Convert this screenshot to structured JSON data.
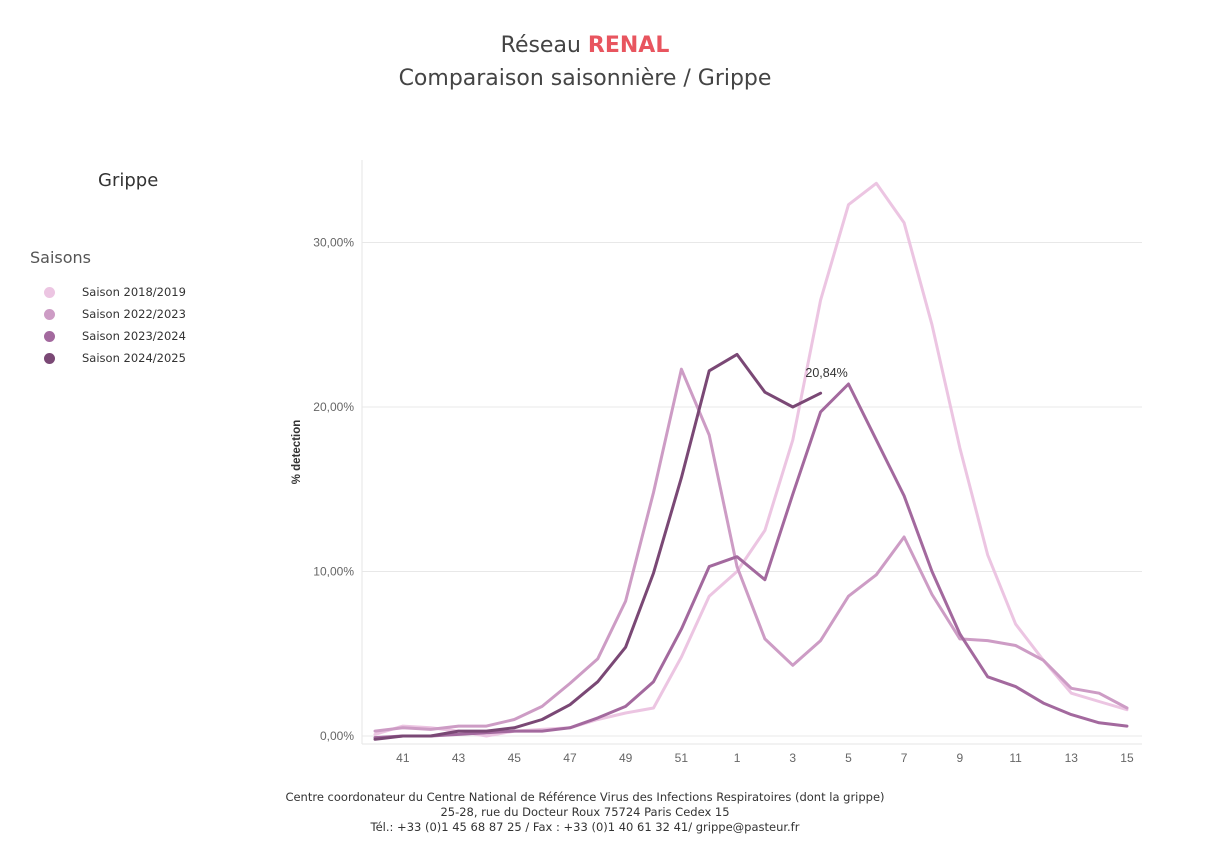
{
  "header": {
    "title_prefix": "Réseau",
    "title_accent": "RENAL",
    "subtitle": "Comparaison saisonnière / Grippe"
  },
  "panel": {
    "title": "Grippe"
  },
  "legend": {
    "title": "Saisons",
    "items": [
      {
        "label": "Saison 2018/2019",
        "color": "#ecc5e2"
      },
      {
        "label": "Saison 2022/2023",
        "color": "#cd9cc5"
      },
      {
        "label": "Saison 2023/2024",
        "color": "#a3699e"
      },
      {
        "label": "Saison 2024/2025",
        "color": "#7a4875"
      }
    ]
  },
  "chart_data": {
    "type": "line",
    "ylabel": "% detection",
    "xlabel": "",
    "ylim": [
      -0.5,
      35
    ],
    "y_ticks": [
      0,
      10,
      20,
      30
    ],
    "y_tick_labels": [
      "0,00%",
      "10,00%",
      "20,00%",
      "30,00%"
    ],
    "categories": [
      "40",
      "41",
      "42",
      "43",
      "44",
      "45",
      "46",
      "47",
      "48",
      "49",
      "50",
      "51",
      "52",
      "1",
      "2",
      "3",
      "4",
      "5",
      "6",
      "7",
      "8",
      "9",
      "10",
      "11",
      "12",
      "13",
      "14",
      "15"
    ],
    "x_tick_labels": [
      "41",
      "43",
      "45",
      "47",
      "49",
      "51",
      "1",
      "3",
      "5",
      "7",
      "9",
      "11",
      "13",
      "15"
    ],
    "series": [
      {
        "name": "Saison 2018/2019",
        "color": "#ecc5e2",
        "values": [
          0.1,
          0.6,
          0.5,
          0.3,
          0.0,
          0.3,
          0.4,
          0.5,
          1.0,
          1.4,
          1.7,
          4.8,
          8.5,
          10.0,
          12.5,
          18.0,
          26.5,
          32.3,
          33.6,
          31.2,
          25.0,
          17.5,
          11.0,
          6.8,
          4.6,
          2.6,
          2.1,
          1.6
        ]
      },
      {
        "name": "Saison 2022/2023",
        "color": "#cd9cc5",
        "values": [
          0.3,
          0.5,
          0.4,
          0.6,
          0.6,
          1.0,
          1.8,
          3.2,
          4.7,
          8.2,
          14.8,
          22.3,
          18.3,
          10.3,
          5.9,
          4.3,
          5.8,
          8.5,
          9.8,
          12.1,
          8.6,
          5.9,
          5.8,
          5.5,
          4.6,
          2.9,
          2.6,
          1.7
        ]
      },
      {
        "name": "Saison 2023/2024",
        "color": "#a3699e",
        "values": [
          -0.1,
          0.0,
          0.0,
          0.1,
          0.2,
          0.3,
          0.3,
          0.5,
          1.1,
          1.8,
          3.3,
          6.5,
          10.3,
          10.9,
          9.5,
          14.7,
          19.7,
          21.4,
          18.0,
          14.6,
          10.0,
          6.2,
          3.6,
          3.0,
          2.0,
          1.3,
          0.8,
          0.6
        ]
      },
      {
        "name": "Saison 2024/2025",
        "color": "#7a4875",
        "values": [
          -0.2,
          0.0,
          0.0,
          0.3,
          0.3,
          0.5,
          1.0,
          1.9,
          3.3,
          5.4,
          9.9,
          15.7,
          22.2,
          23.2,
          20.9,
          20.0,
          20.84,
          null,
          null,
          null,
          null,
          null,
          null,
          null,
          null,
          null,
          null,
          null
        ]
      }
    ],
    "annotation": {
      "text": "20,84%",
      "series": "Saison 2024/2025",
      "category": "4"
    }
  },
  "footer": {
    "line1": "Centre coordonateur du Centre National de Référence Virus des Infections Respiratoires (dont la grippe)",
    "line2": "25-28, rue du Docteur Roux 75724 Paris Cedex 15",
    "line3": "Tél.: +33 (0)1 45 68 87 25 / Fax : +33 (0)1  40 61 32 41/ grippe@pasteur.fr"
  }
}
